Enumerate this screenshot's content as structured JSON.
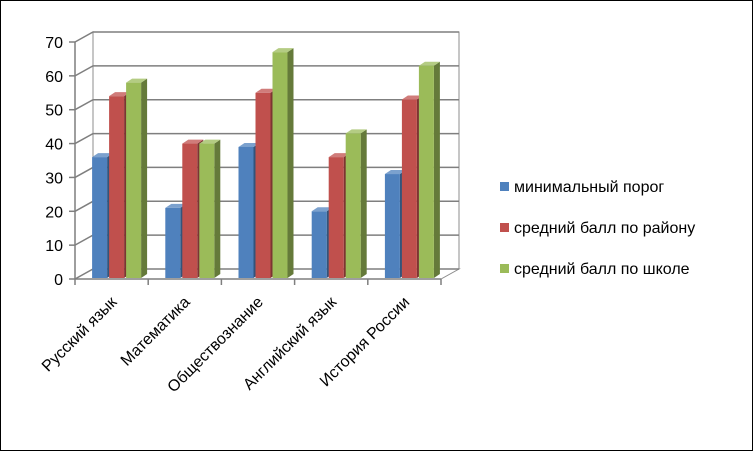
{
  "chart_data": {
    "type": "bar",
    "title": "",
    "xlabel": "",
    "ylabel": "",
    "categories": [
      "Русский язык",
      "Математика",
      "Обществознание",
      "Английский язык",
      "История России"
    ],
    "series": [
      {
        "name": "минимальный порог",
        "values": [
          36,
          21,
          39,
          20,
          31
        ],
        "color": "#4f81bd"
      },
      {
        "name": "средний балл по району",
        "values": [
          54,
          40,
          55,
          36,
          53
        ],
        "color": "#c0504d"
      },
      {
        "name": "средний балл по школе",
        "values": [
          58,
          40,
          67,
          43,
          63
        ],
        "color": "#9bbb59"
      }
    ],
    "ylim": [
      0,
      70
    ],
    "yticks": [
      0,
      10,
      20,
      30,
      40,
      50,
      60,
      70
    ],
    "grid": true,
    "legend": "right",
    "style": "3d-clustered-column"
  }
}
